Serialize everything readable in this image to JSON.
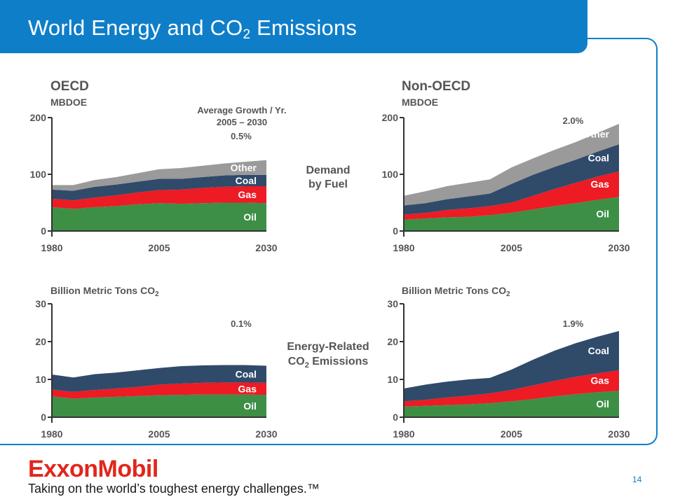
{
  "header": {
    "title_main": "World Energy and CO",
    "title_sub": "2",
    "title_end": " Emissions"
  },
  "center_labels": {
    "demand_line1": "Demand",
    "demand_line2": "by Fuel",
    "emissions_line1": "Energy-Related",
    "emissions_line2_main": "CO",
    "emissions_line2_sub": "2",
    "emissions_line2_end": " Emissions"
  },
  "annotation": {
    "line1": "Average Growth / Yr.",
    "line2": "2005 – 2030"
  },
  "footer": {
    "logo_text": "ExxonMobil",
    "tagline": "Taking on the world’s toughest energy challenges.™",
    "page_number": "14"
  },
  "colors": {
    "header_blue": "#0f7ec9",
    "oil": "#3d8f45",
    "gas": "#ec1b24",
    "coal": "#304a6a",
    "other": "#9a9a9a",
    "axis": "#333333"
  },
  "chart_data": [
    {
      "type": "area",
      "stacked": true,
      "panel_title": "OECD",
      "unit_label": "MBDOE",
      "x": [
        1980,
        1985,
        1990,
        1995,
        2000,
        2005,
        2010,
        2015,
        2020,
        2025,
        2030
      ],
      "xticks": [
        "1980",
        "2005",
        "2030"
      ],
      "ylim": [
        0,
        200
      ],
      "yticks": [
        "0",
        "100",
        "200"
      ],
      "growth_label": "0.5%",
      "series": [
        {
          "name": "Oil",
          "values": [
            42,
            39,
            42,
            44,
            47,
            49,
            48,
            49,
            50,
            50,
            49
          ]
        },
        {
          "name": "Gas",
          "values": [
            15,
            15,
            17,
            19,
            21,
            23,
            25,
            27,
            28,
            29,
            30
          ]
        },
        {
          "name": "Coal",
          "values": [
            16,
            17,
            19,
            19,
            19,
            20,
            19,
            19,
            20,
            20,
            20
          ]
        },
        {
          "name": "Other",
          "values": [
            8,
            10,
            12,
            13,
            15,
            17,
            19,
            20,
            21,
            23,
            26
          ]
        }
      ]
    },
    {
      "type": "area",
      "stacked": true,
      "panel_title": "Non-OECD",
      "unit_label": "MBDOE",
      "x": [
        1980,
        1985,
        1990,
        1995,
        2000,
        2005,
        2010,
        2015,
        2020,
        2025,
        2030
      ],
      "xticks": [
        "1980",
        "2005",
        "2030"
      ],
      "ylim": [
        0,
        200
      ],
      "yticks": [
        "0",
        "100",
        "200"
      ],
      "growth_label": "2.0%",
      "series": [
        {
          "name": "Oil",
          "values": [
            20,
            22,
            24,
            25,
            28,
            32,
            38,
            44,
            49,
            55,
            60
          ]
        },
        {
          "name": "Gas",
          "values": [
            9,
            10,
            13,
            15,
            16,
            18,
            24,
            30,
            36,
            41,
            45
          ]
        },
        {
          "name": "Coal",
          "values": [
            16,
            17,
            19,
            21,
            22,
            33,
            37,
            39,
            41,
            44,
            48
          ]
        },
        {
          "name": "Other",
          "values": [
            17,
            21,
            23,
            24,
            25,
            29,
            29,
            30,
            31,
            33,
            36
          ]
        }
      ]
    },
    {
      "type": "area",
      "stacked": true,
      "panel_title": "",
      "unit_label_main": "Billion Metric Tons CO",
      "unit_label_sub": "2",
      "x": [
        1980,
        1985,
        1990,
        1995,
        2000,
        2005,
        2010,
        2015,
        2020,
        2025,
        2030
      ],
      "xticks": [
        "1980",
        "2005",
        "2030"
      ],
      "ylim": [
        0,
        30
      ],
      "yticks": [
        "0",
        "10",
        "20",
        "30"
      ],
      "growth_label": "0.1%",
      "series": [
        {
          "name": "Oil",
          "values": [
            5.5,
            4.9,
            5.2,
            5.4,
            5.6,
            5.8,
            5.9,
            6.0,
            6.0,
            6.0,
            5.9
          ]
        },
        {
          "name": "Gas",
          "values": [
            1.8,
            1.8,
            2.0,
            2.2,
            2.4,
            2.8,
            3.0,
            3.1,
            3.2,
            3.2,
            3.2
          ]
        },
        {
          "name": "Coal",
          "values": [
            4.0,
            3.8,
            4.2,
            4.2,
            4.4,
            4.4,
            4.6,
            4.6,
            4.6,
            4.6,
            4.5
          ]
        }
      ]
    },
    {
      "type": "area",
      "stacked": true,
      "panel_title": "",
      "unit_label_main": "Billion Metric Tons CO",
      "unit_label_sub": "2",
      "x": [
        1980,
        1985,
        1990,
        1995,
        2000,
        2005,
        2010,
        2015,
        2020,
        2025,
        2030
      ],
      "xticks": [
        "1980",
        "2005",
        "2030"
      ],
      "ylim": [
        0,
        30
      ],
      "yticks": [
        "0",
        "10",
        "20",
        "30"
      ],
      "growth_label": "1.9%",
      "series": [
        {
          "name": "Oil",
          "values": [
            2.8,
            3.0,
            3.2,
            3.4,
            3.7,
            4.2,
            4.8,
            5.5,
            6.1,
            6.6,
            7.0
          ]
        },
        {
          "name": "Gas",
          "values": [
            1.4,
            1.6,
            2.0,
            2.3,
            2.6,
            3.0,
            3.6,
            4.1,
            4.6,
            5.0,
            5.4
          ]
        },
        {
          "name": "Coal",
          "values": [
            3.4,
            4.0,
            4.2,
            4.3,
            4.1,
            5.4,
            6.8,
            8.0,
            8.9,
            9.7,
            10.4
          ]
        }
      ]
    }
  ]
}
